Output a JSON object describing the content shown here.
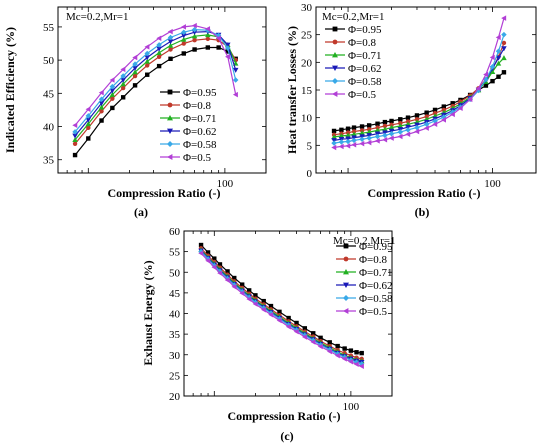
{
  "chart_data": [
    {
      "type": "line",
      "panel_label": "(a)",
      "annotation": "Mc=0.2,Mr=1",
      "xlabel": "Compression Ratio (-)",
      "ylabel": "Indicated  Efficiency (%)",
      "xscale": "log",
      "xlim": [
        6,
        200
      ],
      "ylim": [
        33,
        58
      ],
      "xticks": [
        10,
        100
      ],
      "xtick_labels": [
        "",
        "100"
      ],
      "yticks": [
        35,
        40,
        45,
        50,
        55
      ],
      "ytick_labels": [
        "35",
        "40",
        "45",
        "50",
        "55"
      ],
      "legend_position": "lower-right",
      "series": [
        {
          "name": "Φ=0.95",
          "color": "#000000",
          "marker": "square",
          "x": [
            8,
            10,
            12.5,
            15,
            18,
            22,
            27,
            33,
            40,
            50,
            60,
            75,
            90,
            105,
            120
          ],
          "y": [
            35.7,
            38.2,
            40.9,
            42.8,
            44.4,
            46.2,
            47.8,
            49.1,
            50.2,
            51.0,
            51.6,
            51.9,
            51.9,
            51.3,
            50.2
          ]
        },
        {
          "name": "Φ=0.8",
          "color": "#c0392b",
          "marker": "circle",
          "x": [
            8,
            10,
            12.5,
            15,
            18,
            22,
            27,
            33,
            40,
            50,
            60,
            75,
            90,
            105,
            120
          ],
          "y": [
            37.4,
            39.8,
            42.3,
            44.2,
            45.8,
            47.6,
            49.2,
            50.5,
            51.6,
            52.5,
            53.0,
            53.2,
            53.0,
            52.0,
            50.0
          ]
        },
        {
          "name": "Φ=0.71",
          "color": "#22b022",
          "marker": "triangle-up",
          "x": [
            8,
            10,
            12.5,
            15,
            18,
            22,
            27,
            33,
            40,
            50,
            60,
            75,
            90,
            105,
            120
          ],
          "y": [
            38.0,
            40.4,
            42.9,
            44.8,
            46.4,
            48.2,
            49.8,
            51.1,
            52.2,
            53.1,
            53.6,
            53.8,
            53.5,
            52.3,
            49.5
          ]
        },
        {
          "name": "Φ=0.62",
          "color": "#1a1ab8",
          "marker": "triangle-down",
          "x": [
            8,
            10,
            12.5,
            15,
            18,
            22,
            27,
            33,
            40,
            50,
            60,
            75,
            90,
            105,
            120
          ],
          "y": [
            38.6,
            41.0,
            43.5,
            45.4,
            47.0,
            48.8,
            50.4,
            51.7,
            52.8,
            53.7,
            54.2,
            54.3,
            53.8,
            52.3,
            48.5
          ]
        },
        {
          "name": "Φ=0.58",
          "color": "#39a9e8",
          "marker": "diamond",
          "x": [
            8,
            10,
            12.5,
            15,
            18,
            22,
            27,
            33,
            40,
            50,
            60,
            75,
            90,
            105,
            120
          ],
          "y": [
            39.2,
            41.6,
            44.1,
            46.0,
            47.6,
            49.4,
            51.0,
            52.3,
            53.4,
            54.2,
            54.6,
            54.5,
            53.7,
            51.8,
            47.0
          ]
        },
        {
          "name": "Φ=0.5",
          "color": "#b23fd6",
          "marker": "triangle-left",
          "x": [
            8,
            10,
            12.5,
            15,
            18,
            22,
            27,
            33,
            40,
            50,
            60,
            75,
            90,
            105,
            120
          ],
          "y": [
            40.2,
            42.6,
            45.1,
            47.0,
            48.6,
            50.4,
            52.0,
            53.3,
            54.3,
            55.0,
            55.2,
            54.7,
            53.3,
            50.5,
            44.8
          ]
        }
      ]
    },
    {
      "type": "line",
      "panel_label": "(b)",
      "annotation": "Mc=0.2,Mr=1",
      "xlabel": "Compression Ratio (-)",
      "ylabel": "Heat transfer Losses (%)",
      "xscale": "log",
      "xlim": [
        6,
        200
      ],
      "ylim": [
        0,
        30
      ],
      "xticks": [
        10,
        100
      ],
      "xtick_labels": [
        "",
        "100"
      ],
      "yticks": [
        0,
        5,
        10,
        15,
        20,
        25,
        30
      ],
      "ytick_labels": [
        "0",
        "5",
        "10",
        "15",
        "20",
        "25",
        "30"
      ],
      "legend_position": "top-left",
      "series": [
        {
          "name": "Φ=0.95",
          "color": "#000000",
          "marker": "square",
          "x": [
            8,
            9,
            10,
            11,
            12.5,
            14,
            16,
            18,
            20,
            23,
            26,
            30,
            35,
            40,
            46,
            53,
            60,
            70,
            80,
            90,
            100,
            110,
            120
          ],
          "y": [
            7.6,
            7.8,
            8.0,
            8.2,
            8.4,
            8.6,
            8.9,
            9.2,
            9.4,
            9.7,
            10.0,
            10.4,
            10.9,
            11.4,
            12.0,
            12.6,
            13.2,
            14.1,
            15.0,
            15.8,
            16.6,
            17.4,
            18.2
          ]
        },
        {
          "name": "Φ=0.8",
          "color": "#c0392b",
          "marker": "circle",
          "x": [
            8,
            9,
            10,
            11,
            12.5,
            14,
            16,
            18,
            20,
            23,
            26,
            30,
            35,
            40,
            46,
            53,
            60,
            70,
            80,
            90,
            100,
            110,
            120
          ],
          "y": [
            6.9,
            7.1,
            7.3,
            7.5,
            7.7,
            7.9,
            8.2,
            8.5,
            8.7,
            9.0,
            9.3,
            9.7,
            10.2,
            10.8,
            11.4,
            12.1,
            12.9,
            14.0,
            15.3,
            16.9,
            18.8,
            21.0,
            23.5
          ]
        },
        {
          "name": "Φ=0.71",
          "color": "#22b022",
          "marker": "triangle-up",
          "x": [
            8,
            9,
            10,
            11,
            12.5,
            14,
            16,
            18,
            20,
            23,
            26,
            30,
            35,
            40,
            46,
            53,
            60,
            70,
            80,
            90,
            100,
            110,
            120
          ],
          "y": [
            6.5,
            6.7,
            6.8,
            7.0,
            7.2,
            7.4,
            7.7,
            7.9,
            8.2,
            8.5,
            8.8,
            9.2,
            9.7,
            10.3,
            10.9,
            11.7,
            12.5,
            13.7,
            15.0,
            16.5,
            18.3,
            19.8,
            20.8
          ]
        },
        {
          "name": "Φ=0.62",
          "color": "#1a1ab8",
          "marker": "triangle-down",
          "x": [
            8,
            9,
            10,
            11,
            12.5,
            14,
            16,
            18,
            20,
            23,
            26,
            30,
            35,
            40,
            46,
            53,
            60,
            70,
            80,
            90,
            100,
            110,
            120
          ],
          "y": [
            5.9,
            6.1,
            6.2,
            6.4,
            6.6,
            6.8,
            7.1,
            7.3,
            7.6,
            7.9,
            8.3,
            8.7,
            9.2,
            9.8,
            10.5,
            11.3,
            12.2,
            13.5,
            15.0,
            16.8,
            18.9,
            20.8,
            22.5
          ]
        },
        {
          "name": "Φ=0.58",
          "color": "#39a9e8",
          "marker": "diamond",
          "x": [
            8,
            9,
            10,
            11,
            12.5,
            14,
            16,
            18,
            20,
            23,
            26,
            30,
            35,
            40,
            46,
            53,
            60,
            70,
            80,
            90,
            100,
            110,
            120
          ],
          "y": [
            5.4,
            5.6,
            5.7,
            5.9,
            6.1,
            6.3,
            6.6,
            6.8,
            7.1,
            7.4,
            7.8,
            8.2,
            8.8,
            9.4,
            10.1,
            11.0,
            11.9,
            13.3,
            14.9,
            16.9,
            19.2,
            22.0,
            25.0
          ]
        },
        {
          "name": "Φ=0.5",
          "color": "#b23fd6",
          "marker": "triangle-left",
          "x": [
            8,
            9,
            10,
            11,
            12.5,
            14,
            16,
            18,
            20,
            23,
            26,
            30,
            35,
            40,
            46,
            53,
            60,
            70,
            80,
            90,
            100,
            110,
            120
          ],
          "y": [
            4.6,
            4.8,
            4.9,
            5.1,
            5.3,
            5.5,
            5.8,
            6.0,
            6.3,
            6.6,
            7.0,
            7.5,
            8.1,
            8.8,
            9.6,
            10.6,
            11.7,
            13.3,
            15.3,
            17.8,
            20.9,
            24.5,
            28.0
          ]
        }
      ]
    },
    {
      "type": "line",
      "panel_label": "(c)",
      "annotation": "Mc=0.2,Mr=1",
      "xlabel": "Compression Ratio (-)",
      "ylabel": "Exhaust Energy (%)",
      "xscale": "log",
      "xlim": [
        6,
        200
      ],
      "ylim": [
        20,
        60
      ],
      "xticks": [
        10,
        100
      ],
      "xtick_labels": [
        "",
        "100"
      ],
      "yticks": [
        20,
        25,
        30,
        35,
        40,
        45,
        50,
        55,
        60
      ],
      "ytick_labels": [
        "20",
        "25",
        "30",
        "35",
        "40",
        "45",
        "50",
        "55",
        "60"
      ],
      "legend_position": "top-right",
      "series": [
        {
          "name": "Φ=0.95",
          "color": "#000000",
          "marker": "square",
          "x": [
            8,
            9,
            10,
            11,
            12.5,
            14,
            16,
            18,
            20,
            23,
            26,
            30,
            35,
            40,
            46,
            53,
            60,
            70,
            80,
            90,
            100,
            110,
            120
          ],
          "y": [
            56.6,
            54.8,
            53.3,
            51.9,
            50.2,
            48.6,
            47.0,
            45.6,
            44.4,
            43.0,
            41.8,
            40.4,
            38.9,
            37.7,
            36.4,
            35.2,
            34.1,
            33.0,
            32.1,
            31.5,
            31.0,
            30.6,
            30.4
          ]
        },
        {
          "name": "Φ=0.8",
          "color": "#c0392b",
          "marker": "circle",
          "x": [
            8,
            9,
            10,
            11,
            12.5,
            14,
            16,
            18,
            20,
            23,
            26,
            30,
            35,
            40,
            46,
            53,
            60,
            70,
            80,
            90,
            100,
            110,
            120
          ],
          "y": [
            55.8,
            54.0,
            52.5,
            51.1,
            49.4,
            47.8,
            46.2,
            44.8,
            43.6,
            42.2,
            41.0,
            39.6,
            38.1,
            36.9,
            35.6,
            34.4,
            33.3,
            32.1,
            31.1,
            30.4,
            29.8,
            29.3,
            29.0
          ]
        },
        {
          "name": "Φ=0.71",
          "color": "#22b022",
          "marker": "triangle-up",
          "x": [
            8,
            9,
            10,
            11,
            12.5,
            14,
            16,
            18,
            20,
            23,
            26,
            30,
            35,
            40,
            46,
            53,
            60,
            70,
            80,
            90,
            100,
            110,
            120
          ],
          "y": [
            55.4,
            53.6,
            52.1,
            50.7,
            49.0,
            47.4,
            45.8,
            44.4,
            43.2,
            41.8,
            40.6,
            39.2,
            37.7,
            36.5,
            35.2,
            34.0,
            32.9,
            31.7,
            30.7,
            29.9,
            29.3,
            28.8,
            28.5
          ]
        },
        {
          "name": "Φ=0.62",
          "color": "#1a1ab8",
          "marker": "triangle-down",
          "x": [
            8,
            9,
            10,
            11,
            12.5,
            14,
            16,
            18,
            20,
            23,
            26,
            30,
            35,
            40,
            46,
            53,
            60,
            70,
            80,
            90,
            100,
            110,
            120
          ],
          "y": [
            55.2,
            53.4,
            51.8,
            50.4,
            48.7,
            47.1,
            45.5,
            44.1,
            42.9,
            41.5,
            40.3,
            38.9,
            37.4,
            36.2,
            34.9,
            33.7,
            32.6,
            31.4,
            30.4,
            29.6,
            29.0,
            28.5,
            28.2
          ]
        },
        {
          "name": "Φ=0.58",
          "color": "#39a9e8",
          "marker": "diamond",
          "x": [
            8,
            9,
            10,
            11,
            12.5,
            14,
            16,
            18,
            20,
            23,
            26,
            30,
            35,
            40,
            46,
            53,
            60,
            70,
            80,
            90,
            100,
            110,
            120
          ],
          "y": [
            55.0,
            53.2,
            51.6,
            50.2,
            48.5,
            46.9,
            45.3,
            43.9,
            42.7,
            41.3,
            40.1,
            38.7,
            37.2,
            36.0,
            34.7,
            33.5,
            32.4,
            31.2,
            30.2,
            29.4,
            28.7,
            28.2,
            27.8
          ]
        },
        {
          "name": "Φ=0.5",
          "color": "#b23fd6",
          "marker": "triangle-left",
          "x": [
            8,
            9,
            10,
            11,
            12.5,
            14,
            16,
            18,
            20,
            23,
            26,
            30,
            35,
            40,
            46,
            53,
            60,
            70,
            80,
            90,
            100,
            110,
            120
          ],
          "y": [
            54.6,
            52.8,
            51.2,
            49.8,
            48.1,
            46.5,
            44.9,
            43.5,
            42.3,
            40.9,
            39.7,
            38.3,
            36.8,
            35.6,
            34.3,
            33.1,
            32.0,
            30.8,
            29.8,
            29.0,
            28.3,
            27.7,
            27.2
          ]
        }
      ]
    }
  ]
}
